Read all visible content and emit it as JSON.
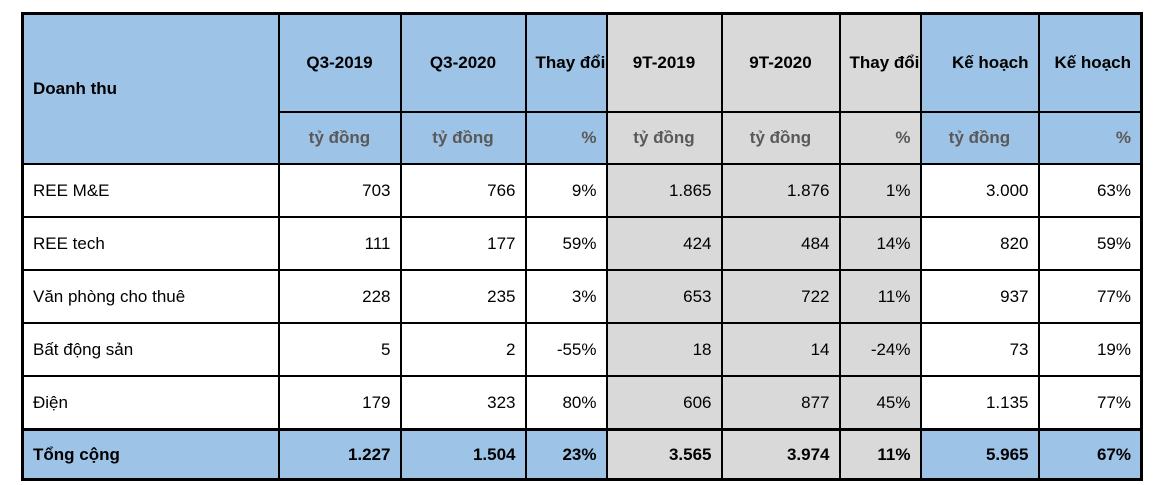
{
  "table": {
    "corner_header": "Doanh thu",
    "columns": [
      {
        "label": "Q3-2019",
        "unit": "tỷ đồng",
        "section": "q3"
      },
      {
        "label": "Q3-2020",
        "unit": "tỷ đồng",
        "section": "q3"
      },
      {
        "label": "Thay đổi",
        "unit": "%",
        "section": "q3"
      },
      {
        "label": "9T-2019",
        "unit": "tỷ đồng",
        "section": "9t"
      },
      {
        "label": "9T-2020",
        "unit": "tỷ đồng",
        "section": "9t"
      },
      {
        "label": "Thay đổi",
        "unit": "%",
        "section": "9t"
      },
      {
        "label": "Kế hoạch",
        "unit": "tỷ đồng",
        "section": "plan"
      },
      {
        "label": "Kế hoạch",
        "unit": "%",
        "section": "plan"
      }
    ],
    "rows": [
      {
        "label": "REE M&E",
        "values": [
          "703",
          "766",
          "9%",
          "1.865",
          "1.876",
          "1%",
          "3.000",
          "63%"
        ]
      },
      {
        "label": "REE tech",
        "values": [
          "111",
          "177",
          "59%",
          "424",
          "484",
          "14%",
          "820",
          "59%"
        ]
      },
      {
        "label": "Văn phòng cho thuê",
        "values": [
          "228",
          "235",
          "3%",
          "653",
          "722",
          "11%",
          "937",
          "77%"
        ]
      },
      {
        "label": "Bất động sản",
        "values": [
          "5",
          "2",
          "-55%",
          "18",
          "14",
          "-24%",
          "73",
          "19%"
        ]
      },
      {
        "label": "Điện",
        "values": [
          "179",
          "323",
          "80%",
          "606",
          "877",
          "45%",
          "1.135",
          "77%"
        ]
      }
    ],
    "total": {
      "label": "Tổng cộng",
      "values": [
        "1.227",
        "1.504",
        "23%",
        "3.565",
        "3.974",
        "11%",
        "5.965",
        "67%"
      ]
    },
    "colors": {
      "section_blue": "#9DC3E6",
      "section_gray": "#D9D9D9",
      "unit_text": "#595959",
      "border": "#000000"
    }
  }
}
